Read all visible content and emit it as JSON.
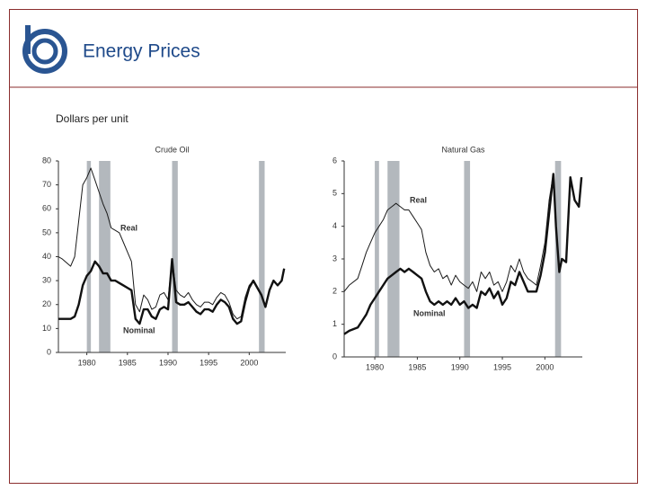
{
  "header": {
    "title": "Energy Prices",
    "subtitle": "Dollars per unit"
  },
  "chart_data": [
    {
      "type": "line",
      "title": "Crude Oil",
      "x": [
        1976.5,
        1977,
        1978,
        1978.5,
        1979,
        1979.5,
        1980,
        1980.5,
        1981,
        1981.5,
        1982,
        1982.5,
        1983,
        1983.5,
        1984,
        1984.5,
        1985,
        1985.5,
        1986,
        1986.5,
        1987,
        1987.5,
        1988,
        1988.5,
        1989,
        1989.5,
        1990,
        1990.5,
        1991,
        1991.5,
        1992,
        1992.5,
        1993,
        1993.5,
        1994,
        1994.5,
        1995,
        1995.5,
        1996,
        1996.5,
        1997,
        1997.5,
        1998,
        1998.5,
        1999,
        1999.5,
        2000,
        2000.5,
        2001,
        2001.5,
        2002,
        2002.5,
        2003,
        2003.5,
        2004,
        2004.3
      ],
      "series": [
        {
          "name": "Real",
          "color": "#1a1a1a",
          "values": [
            40,
            39,
            36,
            40,
            55,
            70,
            73,
            77,
            72,
            67,
            62,
            58,
            52,
            51,
            50,
            46,
            42,
            38,
            20,
            17,
            24,
            22,
            18,
            19,
            24,
            25,
            22,
            39,
            26,
            24,
            23,
            25,
            22,
            20,
            19,
            21,
            21,
            20,
            23,
            25,
            24,
            21,
            16,
            14,
            15,
            23,
            28,
            30,
            27,
            24,
            19,
            26,
            30,
            28,
            30,
            35
          ]
        },
        {
          "name": "Nominal",
          "color": "#111111",
          "values": [
            14,
            14,
            14,
            15,
            20,
            28,
            32,
            34,
            38,
            36,
            33,
            33,
            30,
            30,
            29,
            28,
            27,
            26,
            14,
            12,
            18,
            18,
            15,
            14,
            18,
            19,
            18,
            39,
            21,
            20,
            20,
            21,
            19,
            17,
            16,
            18,
            18,
            17,
            20,
            22,
            21,
            19,
            14,
            12,
            13,
            21,
            27,
            30,
            27,
            24,
            19,
            26,
            30,
            28,
            30,
            35
          ]
        }
      ],
      "recessions": [
        [
          1980.0,
          1980.5
        ],
        [
          1981.5,
          1982.9
        ],
        [
          1990.5,
          1991.2
        ],
        [
          2001.2,
          2001.9
        ]
      ],
      "xlim": [
        1976.5,
        2004.5
      ],
      "xticks": [
        1980,
        1985,
        1990,
        1995,
        2000
      ],
      "ylim": [
        0,
        80
      ],
      "yticks": [
        0,
        10,
        20,
        30,
        40,
        50,
        60,
        70,
        80
      ]
    },
    {
      "type": "line",
      "title": "Natural Gas",
      "x": [
        1976.4,
        1977,
        1978,
        1978.5,
        1979,
        1979.5,
        1980,
        1980.5,
        1981,
        1981.5,
        1982,
        1982.5,
        1983,
        1983.5,
        1984,
        1984.5,
        1985,
        1985.5,
        1986,
        1986.5,
        1987,
        1987.5,
        1988,
        1988.5,
        1989,
        1989.5,
        1990,
        1990.5,
        1991,
        1991.5,
        1992,
        1992.5,
        1993,
        1993.5,
        1994,
        1994.5,
        1995,
        1995.5,
        1996,
        1996.5,
        1997,
        1997.5,
        1998,
        1998.5,
        1999,
        1999.5,
        2000,
        2000.5,
        2001,
        2001.3,
        2001.7,
        2002,
        2002.5,
        2003,
        2003.5,
        2004,
        2004.3
      ],
      "series": [
        {
          "name": "Real",
          "color": "#1a1a1a",
          "values": [
            2.0,
            2.2,
            2.4,
            2.8,
            3.2,
            3.5,
            3.8,
            4.0,
            4.2,
            4.5,
            4.6,
            4.7,
            4.6,
            4.5,
            4.5,
            4.3,
            4.1,
            3.9,
            3.2,
            2.8,
            2.6,
            2.7,
            2.4,
            2.5,
            2.2,
            2.5,
            2.3,
            2.2,
            2.1,
            2.3,
            2.0,
            2.6,
            2.4,
            2.6,
            2.2,
            2.3,
            2.0,
            2.3,
            2.8,
            2.6,
            3.0,
            2.6,
            2.4,
            2.3,
            2.2,
            2.8,
            3.5,
            4.8,
            5.6,
            4.0,
            2.6,
            3.0,
            2.9,
            5.5,
            4.8,
            4.6,
            5.5
          ]
        },
        {
          "name": "Nominal",
          "color": "#111111",
          "values": [
            0.7,
            0.8,
            0.9,
            1.1,
            1.3,
            1.6,
            1.8,
            2.0,
            2.2,
            2.4,
            2.5,
            2.6,
            2.7,
            2.6,
            2.7,
            2.6,
            2.5,
            2.4,
            2.0,
            1.7,
            1.6,
            1.7,
            1.6,
            1.7,
            1.6,
            1.8,
            1.6,
            1.7,
            1.5,
            1.6,
            1.5,
            2.0,
            1.9,
            2.1,
            1.8,
            2.0,
            1.6,
            1.8,
            2.3,
            2.2,
            2.6,
            2.3,
            2.0,
            2.0,
            2.0,
            2.5,
            3.2,
            4.4,
            5.6,
            4.0,
            2.6,
            3.0,
            2.9,
            5.5,
            4.8,
            4.6,
            5.5
          ]
        }
      ],
      "recessions": [
        [
          1980.0,
          1980.5
        ],
        [
          1981.5,
          1982.9
        ],
        [
          1990.5,
          1991.2
        ],
        [
          2001.2,
          2001.9
        ]
      ],
      "xlim": [
        1976.4,
        2004.4
      ],
      "xticks": [
        1980,
        1985,
        1990,
        1995,
        2000
      ],
      "ylim": [
        0,
        6
      ],
      "yticks": [
        0,
        1,
        2,
        3,
        4,
        5,
        6
      ]
    }
  ]
}
